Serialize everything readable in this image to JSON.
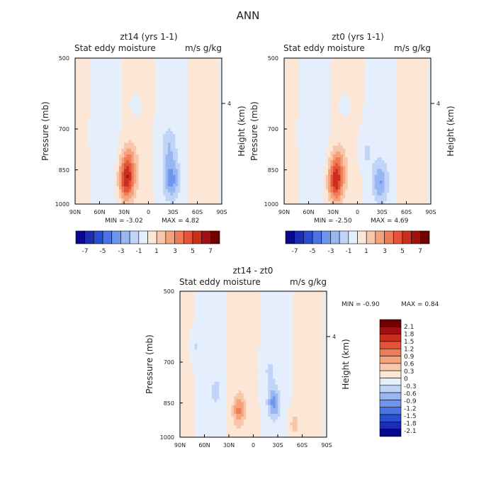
{
  "figure_title": "ANN",
  "color_scale_main": [
    "#08088c",
    "#1c2cb4",
    "#2a4ed0",
    "#4a74e6",
    "#6e96ee",
    "#98b6f2",
    "#c0d4f8",
    "#e4eefc",
    "#fce6d6",
    "#f8c6aa",
    "#f4a27c",
    "#ee7c56",
    "#e4543a",
    "#cc2e1e",
    "#a01010",
    "#700000"
  ],
  "color_scale_diff": [
    "#08088c",
    "#1c2cb4",
    "#2a4ed0",
    "#4a74e6",
    "#6e96ee",
    "#98b6f2",
    "#c0d4f8",
    "#e4eefc",
    "#fce6d6",
    "#f8c6aa",
    "#f4a27c",
    "#ee7c56",
    "#e4543a",
    "#cc2e1e",
    "#a01010",
    "#700000"
  ],
  "chart_data": [
    {
      "type": "heatmap",
      "title": "zt14 (yrs 1-1)",
      "field_label": "Stat eddy moisture",
      "units": "m/s g/kg",
      "xlabel": "",
      "ylabel": "Pressure (mb)",
      "y2label": "Height (km)",
      "x_ticks": [
        "90N",
        "60N",
        "30N",
        "0",
        "30S",
        "60S",
        "90S"
      ],
      "y_ticks": [
        "500",
        "700",
        "850",
        "1000"
      ],
      "y2_ticks": [
        "4"
      ],
      "min_text": "MIN =  -3.02",
      "max_text": "MAX =   4.82",
      "colorbar_labels": [
        "-7",
        "-5",
        "-3",
        "-1",
        "1",
        "3",
        "5",
        "7"
      ],
      "x_range": [
        90,
        -90
      ],
      "y_range": [
        1000,
        500
      ],
      "features": [
        {
          "lat": 27,
          "p": 900,
          "value": 4.8
        },
        {
          "lat": 25,
          "p": 820,
          "value": 2.5
        },
        {
          "lat": -28,
          "p": 890,
          "value": -3.0
        },
        {
          "lat": -25,
          "p": 760,
          "value": -1.5
        },
        {
          "lat": 60,
          "p": 720,
          "value": -0.5
        },
        {
          "lat": 15,
          "p": 620,
          "value": -0.5
        }
      ]
    },
    {
      "type": "heatmap",
      "title": "zt0 (yrs 1-1)",
      "field_label": "Stat eddy moisture",
      "units": "m/s g/kg",
      "xlabel": "",
      "ylabel": "Pressure (mb)",
      "y2label": "Height (km)",
      "x_ticks": [
        "90N",
        "60N",
        "30N",
        "0",
        "30S",
        "60S",
        "90S"
      ],
      "y_ticks": [
        "500",
        "700",
        "850",
        "1000"
      ],
      "y2_ticks": [
        "4"
      ],
      "min_text": "MIN =  -2.50",
      "max_text": "MAX =   4.69",
      "colorbar_labels": [
        "-7",
        "-5",
        "-3",
        "-1",
        "1",
        "3",
        "5",
        "7"
      ],
      "x_range": [
        90,
        -90
      ],
      "y_range": [
        1000,
        500
      ],
      "features": [
        {
          "lat": 27,
          "p": 905,
          "value": 4.7
        },
        {
          "lat": 25,
          "p": 830,
          "value": 2.3
        },
        {
          "lat": -28,
          "p": 905,
          "value": -2.5
        },
        {
          "lat": -10,
          "p": 780,
          "value": -1.0
        },
        {
          "lat": 60,
          "p": 720,
          "value": -0.5
        },
        {
          "lat": 15,
          "p": 620,
          "value": -0.5
        }
      ]
    },
    {
      "type": "heatmap",
      "title": "zt14 - zt0",
      "field_label": "Stat eddy moisture",
      "units": "m/s g/kg",
      "xlabel": "",
      "ylabel": "Pressure (mb)",
      "y2label": "Height (km)",
      "x_ticks": [
        "90N",
        "60N",
        "30N",
        "0",
        "30S",
        "60S",
        "90S"
      ],
      "y_ticks": [
        "500",
        "700",
        "850",
        "1000"
      ],
      "y2_ticks": [
        "4"
      ],
      "min_text": "MIN =  -0.90",
      "max_text": "MAX =   0.84",
      "colorbar_labels": [
        "2.1",
        "1.8",
        "1.5",
        "1.2",
        "0.9",
        "0.6",
        "0.3",
        "0",
        "-0.3",
        "-0.6",
        "-0.9",
        "-1.2",
        "-1.5",
        "-1.8",
        "-2.1"
      ],
      "x_range": [
        90,
        -90
      ],
      "y_range": [
        1000,
        500
      ],
      "features": [
        {
          "lat": 18,
          "p": 880,
          "value": 0.84
        },
        {
          "lat": -25,
          "p": 850,
          "value": -0.9
        },
        {
          "lat": -20,
          "p": 730,
          "value": -0.3
        },
        {
          "lat": 45,
          "p": 800,
          "value": -0.3
        },
        {
          "lat": -50,
          "p": 940,
          "value": 0.4
        },
        {
          "lat": 70,
          "p": 650,
          "value": -0.3
        }
      ]
    }
  ]
}
